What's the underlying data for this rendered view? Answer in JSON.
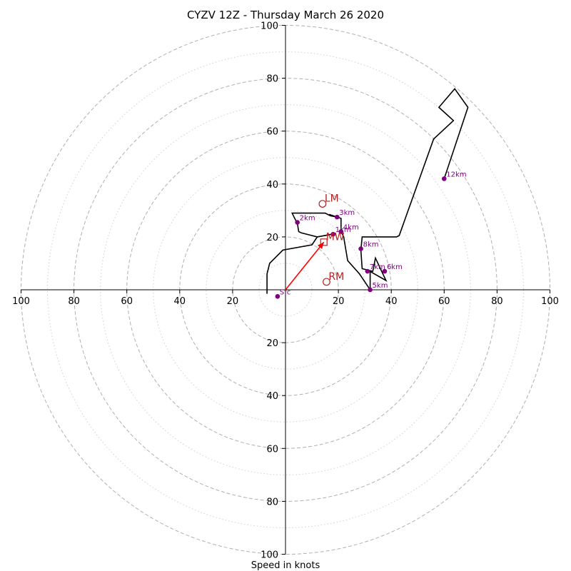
{
  "chart_data": {
    "type": "hodograph",
    "title": "CYZV 12Z - Thursday March 26 2020",
    "xlabel": "Speed in knots",
    "ylabel": "",
    "xlim": [
      -100,
      100
    ],
    "ylim": [
      -100,
      100
    ],
    "tick_values": [
      20,
      40,
      60,
      80,
      100
    ],
    "x_tick_labels": [
      "100",
      "80",
      "60",
      "40",
      "20",
      "20",
      "40",
      "60",
      "80",
      "100"
    ],
    "y_tick_labels": [
      "100",
      "80",
      "60",
      "40",
      "20",
      "20",
      "40",
      "60",
      "80",
      "100"
    ],
    "rings_dashed": [
      20,
      40,
      60,
      80,
      100
    ],
    "rings_dotted": [
      10,
      30,
      50,
      70,
      90
    ],
    "colors": {
      "trace": "#000000",
      "height_marker": "#800080",
      "storm_motion": "#b22222",
      "mean_wind_arrow": "#ff0000",
      "ring": "#b0b0b0"
    },
    "hodograph_trace": [
      {
        "u": -7,
        "v": -1.5
      },
      {
        "u": -7,
        "v": 0
      },
      {
        "u": -7,
        "v": 6
      },
      {
        "u": -6,
        "v": 10
      },
      {
        "u": -1,
        "v": 15
      },
      {
        "u": 10,
        "v": 17
      },
      {
        "u": 12,
        "v": 20
      },
      {
        "u": 15,
        "v": 20.5
      },
      {
        "u": 17.5,
        "v": 21
      },
      {
        "u": 12,
        "v": 20
      },
      {
        "u": 6,
        "v": 21.5
      },
      {
        "u": 5,
        "v": 22
      },
      {
        "u": 4.5,
        "v": 25
      },
      {
        "u": 3,
        "v": 28
      },
      {
        "u": 2.5,
        "v": 29
      },
      {
        "u": 15,
        "v": 29
      },
      {
        "u": 17,
        "v": 28
      },
      {
        "u": 19.5,
        "v": 27.5
      },
      {
        "u": 16.5,
        "v": 28.5
      },
      {
        "u": 21,
        "v": 27
      },
      {
        "u": 21,
        "v": 22
      },
      {
        "u": 22,
        "v": 20
      },
      {
        "u": 23.5,
        "v": 11
      },
      {
        "u": 28,
        "v": 6
      },
      {
        "u": 32,
        "v": 0
      },
      {
        "u": 32,
        "v": 7
      },
      {
        "u": 31,
        "v": 7.5
      },
      {
        "u": 38,
        "v": 3.5
      },
      {
        "u": 34,
        "v": 12
      },
      {
        "u": 33,
        "v": 7
      },
      {
        "u": 29,
        "v": 8
      },
      {
        "u": 28.5,
        "v": 15
      },
      {
        "u": 29,
        "v": 20
      },
      {
        "u": 42,
        "v": 20
      },
      {
        "u": 43,
        "v": 20.5
      },
      {
        "u": 56,
        "v": 57
      },
      {
        "u": 63.5,
        "v": 64
      },
      {
        "u": 58,
        "v": 69
      },
      {
        "u": 64,
        "v": 76
      },
      {
        "u": 69,
        "v": 69
      },
      {
        "u": 60,
        "v": 42
      }
    ],
    "height_markers": [
      {
        "label": "Sfc",
        "u": -3,
        "v": -2.5
      },
      {
        "label": "1km",
        "u": 18,
        "v": 21
      },
      {
        "label": "2km",
        "u": 4.5,
        "v": 25.5
      },
      {
        "label": "3km",
        "u": 19.5,
        "v": 27.5
      },
      {
        "label": "4km",
        "u": 21,
        "v": 22
      },
      {
        "label": "5km",
        "u": 32,
        "v": 0
      },
      {
        "label": "6km",
        "u": 37.5,
        "v": 7
      },
      {
        "label": "7km",
        "u": 31,
        "v": 7
      },
      {
        "label": "8km",
        "u": 28.5,
        "v": 15.5
      },
      {
        "label": "12km",
        "u": 60,
        "v": 42
      }
    ],
    "storm_motion": [
      {
        "label": "LM",
        "u": 14,
        "v": 32.5,
        "marker": "circle"
      },
      {
        "label": "MW",
        "u": 14.5,
        "v": 18,
        "marker": "square"
      },
      {
        "label": "RM",
        "u": 15.5,
        "v": 3,
        "marker": "circle"
      }
    ],
    "mean_wind_vector": {
      "u": 14.5,
      "v": 18
    }
  }
}
